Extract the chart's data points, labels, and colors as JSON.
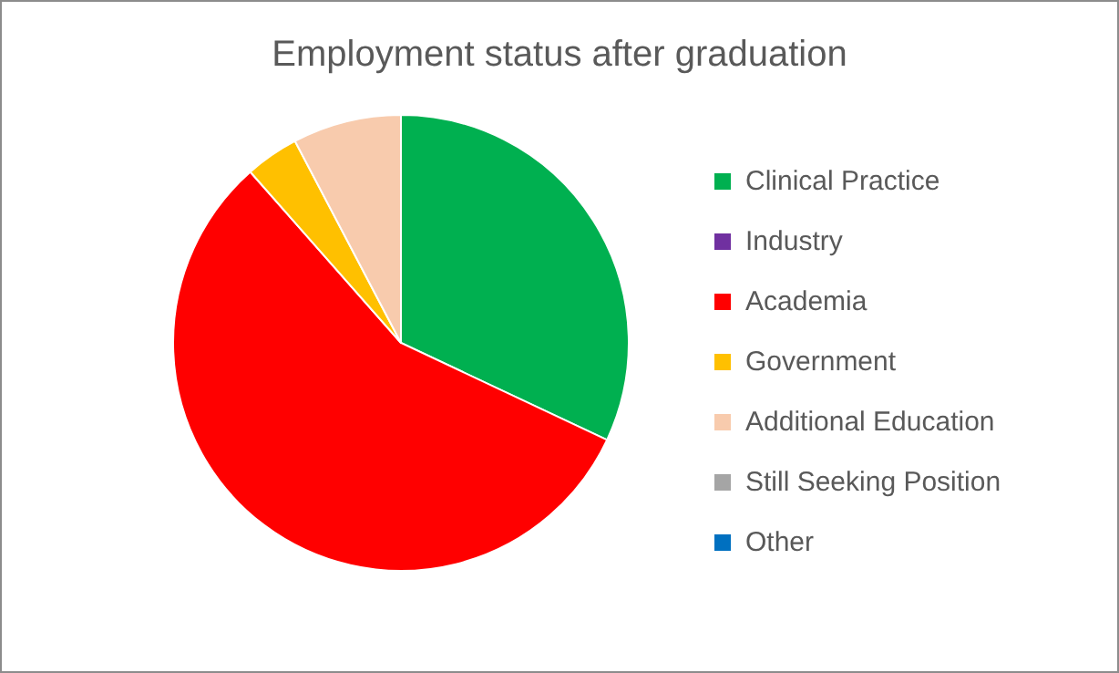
{
  "chart_data": {
    "type": "pie",
    "title": "Employment status after graduation",
    "categories": [
      "Clinical Practice",
      "Industry",
      "Academia",
      "Government",
      "Additional Education",
      "Still Seeking Position",
      "Other"
    ],
    "values": [
      32,
      0,
      56.5,
      3.8,
      7.7,
      0,
      0
    ],
    "colors": [
      "#00b050",
      "#7030a0",
      "#ff0000",
      "#ffc000",
      "#f8cbad",
      "#a5a5a5",
      "#0070c0"
    ],
    "legend": "right"
  }
}
